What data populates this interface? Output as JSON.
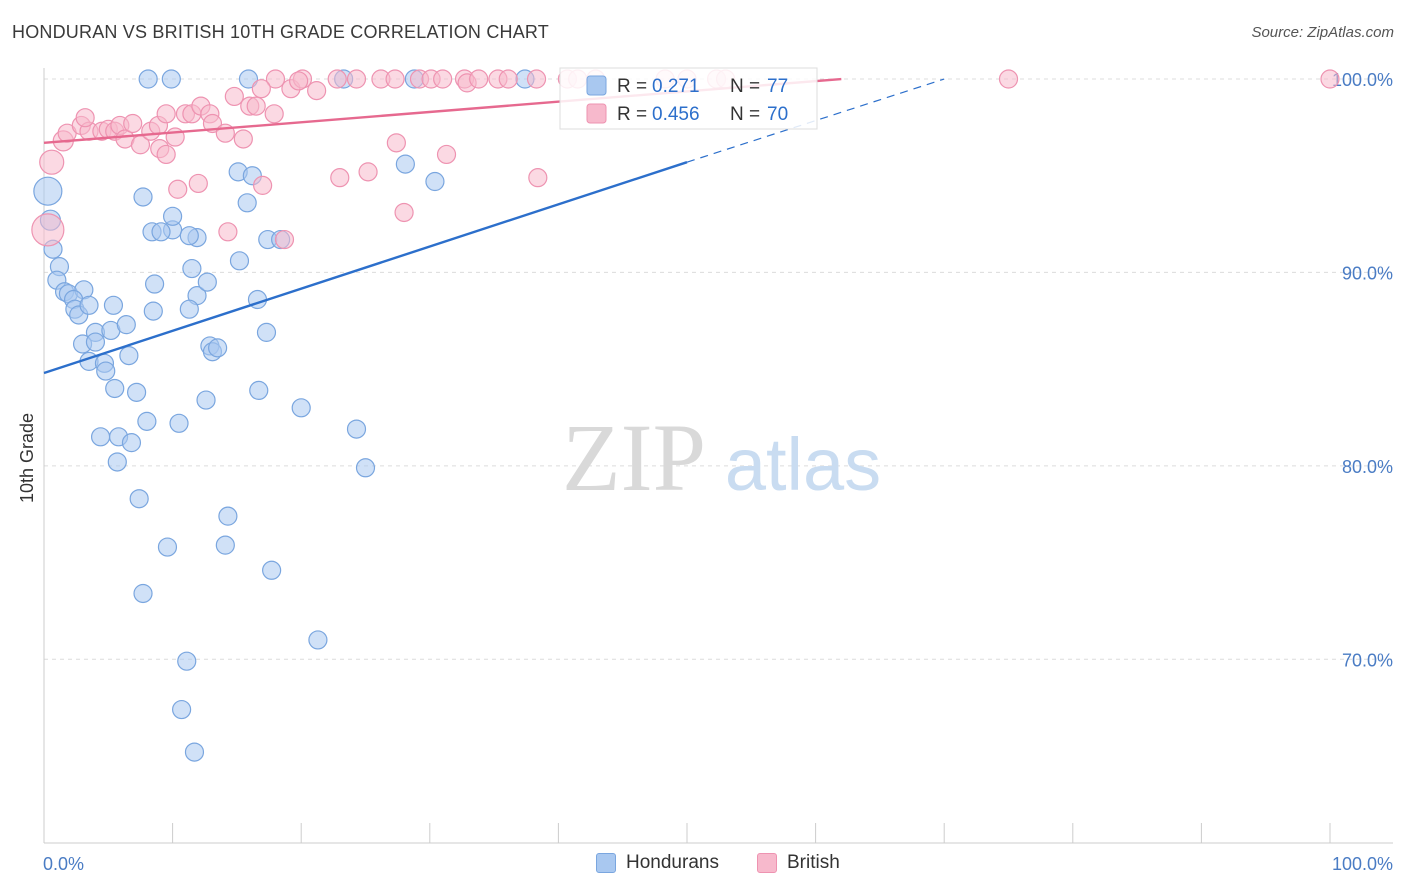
{
  "header": {
    "title": "HONDURAN VS BRITISH 10TH GRADE CORRELATION CHART",
    "source": "Source: ZipAtlas.com"
  },
  "watermark": {
    "zip": "ZIP",
    "atlas": "atlas"
  },
  "colors": {
    "blue_fill": "#a9c8f0",
    "blue_stroke": "#7aa6df",
    "blue_line": "#2c6fcb",
    "pink_fill": "#f7b9cc",
    "pink_stroke": "#ee93b1",
    "pink_line": "#e6698f",
    "axis_text": "#4a7cc4",
    "grid": "#dcdcdc"
  },
  "chart_data": {
    "type": "scatter",
    "title": "HONDURAN VS BRITISH 10TH GRADE CORRELATION CHART",
    "xlabel": "",
    "ylabel": "10th Grade",
    "xlim": [
      0,
      100
    ],
    "ylim": [
      60.5,
      101.5
    ],
    "x_tick_labels": {
      "min": "0.0%",
      "max": "100.0%"
    },
    "y_ticks": [
      {
        "value": 100,
        "label": "100.0%"
      },
      {
        "value": 90,
        "label": "90.0%"
      },
      {
        "value": 80,
        "label": "80.0%"
      },
      {
        "value": 70,
        "label": "70.0%"
      }
    ],
    "grid": true,
    "legend_stats": [
      {
        "series": "Hondurans",
        "r_label": "R =",
        "r": "0.271",
        "n_label": "N =",
        "n": "77"
      },
      {
        "series": "British",
        "r_label": "R =",
        "r": "0.456",
        "n_label": "N =",
        "n": "70"
      }
    ],
    "legend_position": "bottom",
    "series": [
      {
        "name": "Hondurans",
        "color": "blue",
        "trend": {
          "x0": 0,
          "y0": 84.8,
          "x1": 50,
          "y1": 95.7,
          "dash_to_x": 70,
          "dash_to_y": 100.0
        },
        "points": [
          [
            0.3,
            94.2,
            14
          ],
          [
            0.5,
            92.7,
            10
          ],
          [
            0.7,
            91.2,
            9
          ],
          [
            1.2,
            90.3,
            9
          ],
          [
            1.0,
            89.6,
            9
          ],
          [
            1.6,
            89.0,
            9
          ],
          [
            1.9,
            88.9,
            9
          ],
          [
            3.1,
            89.1,
            9
          ],
          [
            2.3,
            88.6,
            9
          ],
          [
            2.4,
            88.1,
            9
          ],
          [
            2.7,
            87.8,
            9
          ],
          [
            3.5,
            88.3,
            9
          ],
          [
            5.4,
            88.3,
            9
          ],
          [
            4.0,
            86.9,
            9
          ],
          [
            5.2,
            87.0,
            9
          ],
          [
            6.4,
            87.3,
            9
          ],
          [
            3.0,
            86.3,
            9
          ],
          [
            4.0,
            86.4,
            9
          ],
          [
            6.6,
            85.7,
            9
          ],
          [
            3.5,
            85.4,
            9
          ],
          [
            4.7,
            85.3,
            9
          ],
          [
            4.8,
            84.9,
            9
          ],
          [
            5.5,
            84.0,
            9
          ],
          [
            7.2,
            83.8,
            9
          ],
          [
            8.0,
            82.3,
            9
          ],
          [
            4.4,
            81.5,
            9
          ],
          [
            5.8,
            81.5,
            9
          ],
          [
            6.8,
            81.2,
            9
          ],
          [
            5.7,
            80.2,
            9
          ],
          [
            7.4,
            78.3,
            9
          ],
          [
            8.4,
            92.1,
            9
          ],
          [
            7.7,
            93.9,
            9
          ],
          [
            10.0,
            92.2,
            9
          ],
          [
            10.0,
            92.9,
            9
          ],
          [
            9.1,
            92.1,
            9
          ],
          [
            8.6,
            89.4,
            9
          ],
          [
            8.5,
            88.0,
            9
          ],
          [
            11.9,
            91.8,
            9
          ],
          [
            11.3,
            91.9,
            9
          ],
          [
            11.9,
            88.8,
            9
          ],
          [
            11.3,
            88.1,
            9
          ],
          [
            11.5,
            90.2,
            9
          ],
          [
            12.7,
            89.5,
            9
          ],
          [
            12.9,
            86.2,
            9
          ],
          [
            13.1,
            85.9,
            9
          ],
          [
            13.5,
            86.1,
            9
          ],
          [
            12.6,
            83.4,
            9
          ],
          [
            14.3,
            77.4,
            9
          ],
          [
            14.1,
            75.9,
            9
          ],
          [
            9.6,
            75.8,
            9
          ],
          [
            7.7,
            73.4,
            9
          ],
          [
            11.1,
            69.9,
            9
          ],
          [
            10.7,
            67.4,
            9
          ],
          [
            11.7,
            65.2,
            9
          ],
          [
            10.5,
            82.2,
            9
          ],
          [
            15.2,
            90.6,
            9
          ],
          [
            15.1,
            95.2,
            9
          ],
          [
            15.8,
            93.6,
            9
          ],
          [
            16.2,
            95.0,
            9
          ],
          [
            17.4,
            91.7,
            9
          ],
          [
            16.6,
            88.6,
            9
          ],
          [
            17.3,
            86.9,
            9
          ],
          [
            16.7,
            83.9,
            9
          ],
          [
            17.7,
            74.6,
            9
          ],
          [
            18.4,
            91.7,
            9
          ],
          [
            20.0,
            83.0,
            9
          ],
          [
            21.3,
            71.0,
            9
          ],
          [
            24.3,
            81.9,
            9
          ],
          [
            25.0,
            79.9,
            9
          ],
          [
            28.1,
            95.6,
            9
          ],
          [
            30.4,
            94.7,
            9
          ],
          [
            8.1,
            100.0,
            9
          ],
          [
            9.9,
            100.0,
            9
          ],
          [
            15.9,
            100.0,
            9
          ],
          [
            23.3,
            100.0,
            9
          ],
          [
            28.8,
            100.0,
            9
          ],
          [
            37.4,
            100.0,
            9
          ]
        ]
      },
      {
        "name": "British",
        "color": "pink",
        "trend": {
          "x0": 0,
          "y0": 96.7,
          "x1": 62,
          "y1": 100.0
        },
        "points": [
          [
            0.3,
            92.2,
            16
          ],
          [
            0.6,
            95.7,
            12
          ],
          [
            1.5,
            96.8,
            10
          ],
          [
            1.8,
            97.2,
            9
          ],
          [
            2.9,
            97.6,
            9
          ],
          [
            3.5,
            97.3,
            9
          ],
          [
            3.2,
            98.0,
            9
          ],
          [
            4.5,
            97.3,
            9
          ],
          [
            5.0,
            97.4,
            9
          ],
          [
            5.5,
            97.3,
            9
          ],
          [
            5.9,
            97.6,
            9
          ],
          [
            6.3,
            96.9,
            9
          ],
          [
            6.9,
            97.7,
            9
          ],
          [
            7.5,
            96.6,
            9
          ],
          [
            8.3,
            97.3,
            9
          ],
          [
            8.9,
            97.6,
            9
          ],
          [
            9.0,
            96.4,
            9
          ],
          [
            9.5,
            96.1,
            9
          ],
          [
            10.2,
            97.0,
            9
          ],
          [
            10.4,
            94.3,
            9
          ],
          [
            11.0,
            98.2,
            9
          ],
          [
            11.5,
            98.2,
            9
          ],
          [
            12.2,
            98.6,
            9
          ],
          [
            12.9,
            98.2,
            9
          ],
          [
            13.1,
            97.7,
            9
          ],
          [
            14.1,
            97.2,
            9
          ],
          [
            14.3,
            92.1,
            9
          ],
          [
            12.0,
            94.6,
            9
          ],
          [
            14.8,
            99.1,
            9
          ],
          [
            15.5,
            96.9,
            9
          ],
          [
            16.0,
            98.6,
            9
          ],
          [
            16.5,
            98.6,
            9
          ],
          [
            17.0,
            94.5,
            9
          ],
          [
            17.9,
            98.2,
            9
          ],
          [
            18.0,
            100.0,
            9
          ],
          [
            18.7,
            91.7,
            9
          ],
          [
            19.2,
            99.5,
            9
          ],
          [
            20.1,
            100.0,
            9
          ],
          [
            21.2,
            99.4,
            9
          ],
          [
            22.8,
            100.0,
            9
          ],
          [
            23.0,
            94.9,
            9
          ],
          [
            24.3,
            100.0,
            9
          ],
          [
            25.2,
            95.2,
            9
          ],
          [
            26.2,
            100.0,
            9
          ],
          [
            27.3,
            100.0,
            9
          ],
          [
            27.4,
            96.7,
            9
          ],
          [
            28.0,
            93.1,
            9
          ],
          [
            29.2,
            100.0,
            9
          ],
          [
            30.1,
            100.0,
            9
          ],
          [
            31.0,
            100.0,
            9
          ],
          [
            31.3,
            96.1,
            9
          ],
          [
            32.7,
            100.0,
            9
          ],
          [
            35.3,
            100.0,
            9
          ],
          [
            38.3,
            100.0,
            9
          ],
          [
            40.7,
            100.0,
            9
          ],
          [
            41.5,
            100.0,
            9
          ],
          [
            42.9,
            100.0,
            9
          ],
          [
            48.3,
            100.0,
            9
          ],
          [
            50.0,
            100.0,
            9
          ],
          [
            52.3,
            100.0,
            9
          ],
          [
            53.0,
            100.0,
            9
          ],
          [
            75.0,
            100.0,
            9
          ],
          [
            100.0,
            100.0,
            9
          ],
          [
            38.4,
            94.9,
            9
          ],
          [
            16.9,
            99.5,
            9
          ],
          [
            19.8,
            99.9,
            9
          ],
          [
            32.9,
            99.8,
            9
          ],
          [
            36.1,
            100.0,
            9
          ],
          [
            33.8,
            100.0,
            9
          ],
          [
            9.5,
            98.2,
            9
          ]
        ]
      }
    ]
  },
  "legend_bottom": [
    {
      "label": "Hondurans",
      "color": "blue"
    },
    {
      "label": "British",
      "color": "pink"
    }
  ]
}
